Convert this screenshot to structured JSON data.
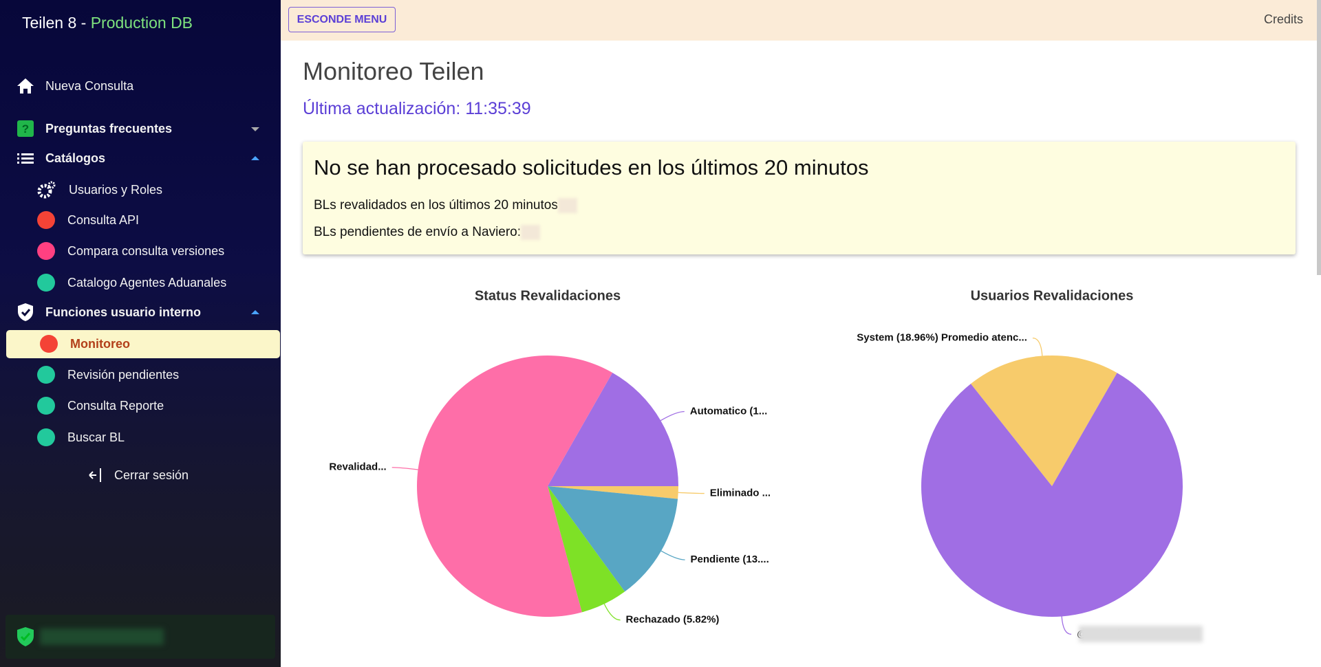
{
  "sidebar": {
    "brand": "Teilen 8 - ",
    "env": "Production DB",
    "items": [
      "Nueva Consulta",
      "Preguntas frecuentes",
      "Catálogos",
      "Usuarios y Roles",
      "Consulta API",
      "Compara consulta versiones",
      "Catalogo Agentes Aduanales",
      "Funciones usuario interno",
      "Monitoreo",
      "Revisión pendientes",
      "Consulta Reporte",
      "Buscar BL"
    ],
    "logout": "Cerrar sesión"
  },
  "header": {
    "button": "ESCONDE MENU",
    "credits": "Credits"
  },
  "main": {
    "title": "Monitoreo Teilen",
    "updated": "Última actualización: 11:35:39",
    "alert": {
      "title": "No se han procesado solicitudes en los últimos 20 minutos",
      "lines": [
        "BLs revalidados en los últimos 20 minutos",
        "BLs pendientes de envío a Naviero:"
      ]
    }
  },
  "chart_data": [
    {
      "type": "pie",
      "title": "Status Revalidaciones",
      "categories": [
        "Automatico (1...",
        "Eliminado ...",
        "Pendiente (13....",
        "Rechazado (5.82%)",
        "Revalidad..."
      ],
      "values": [
        16.75,
        1.56,
        13.4,
        5.82,
        62.47
      ],
      "colors": [
        "#a06ee4",
        "#f7cb6b",
        "#58a6c4",
        "#7ee126",
        "#fe6ea8"
      ]
    },
    {
      "type": "pie",
      "title": "Usuarios Revalidaciones",
      "categories": [
        "System (18.96%) Promedio atenc...",
        "@maersk.co..."
      ],
      "values": [
        18.96,
        81.04
      ],
      "colors": [
        "#f7cb6b",
        "#a06ee4"
      ]
    }
  ]
}
